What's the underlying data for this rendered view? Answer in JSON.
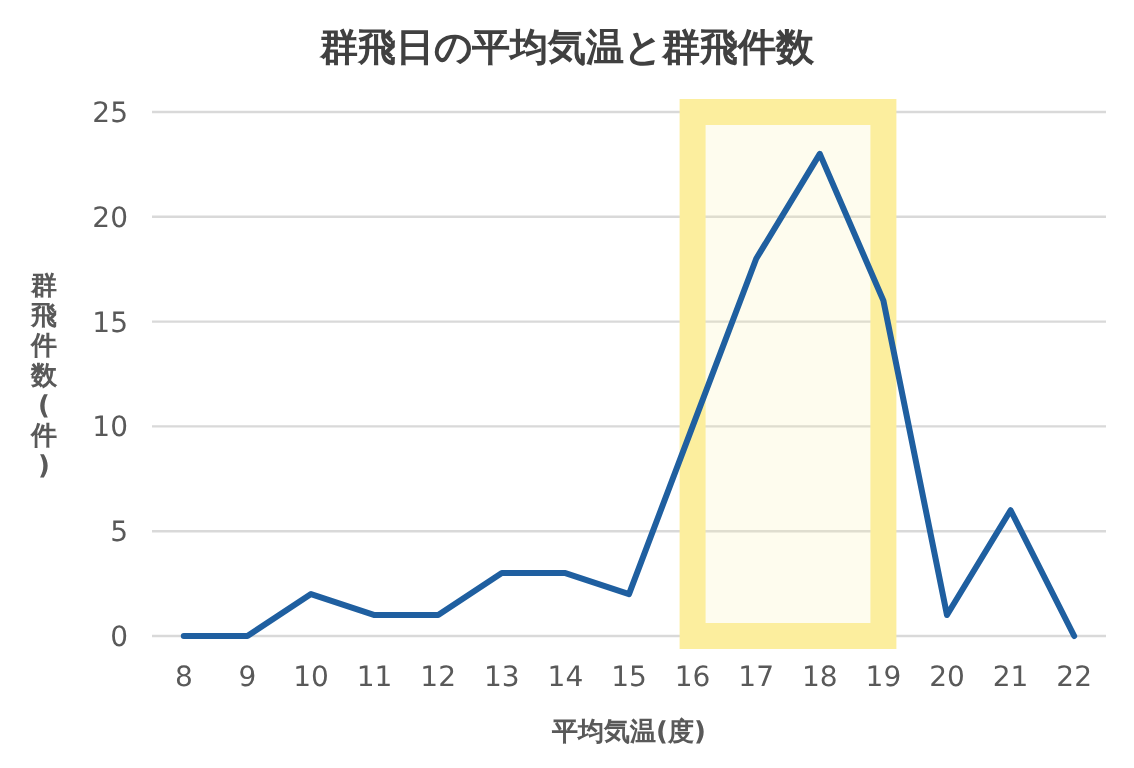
{
  "chart_data": {
    "type": "line",
    "title": "群飛日の平均気温と群飛件数",
    "xlabel": "平均気温(度)",
    "ylabel": "群飛件数(件)",
    "categories": [
      "8",
      "9",
      "10",
      "11",
      "12",
      "13",
      "14",
      "15",
      "16",
      "17",
      "18",
      "19",
      "20",
      "21",
      "22"
    ],
    "series": [
      {
        "color": "#1f5fa0",
        "values": [
          0,
          0,
          2,
          1,
          1,
          3,
          3,
          2,
          10,
          18,
          23,
          16,
          1,
          6,
          0
        ]
      }
    ],
    "ylim": [
      0,
      25
    ],
    "yticks": [
      0,
      5,
      10,
      15,
      20,
      25
    ],
    "grid": "y",
    "marker": "none",
    "line_style": "solid",
    "bands": [
      {
        "axis": "x",
        "from": "16",
        "to": "19",
        "color": "#fcee9e"
      }
    ]
  }
}
